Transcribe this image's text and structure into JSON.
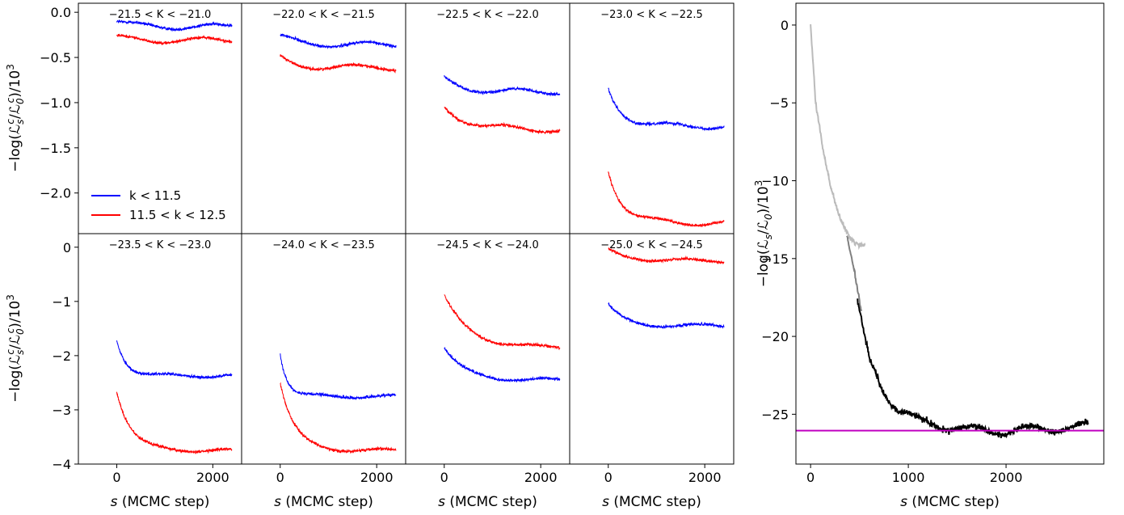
{
  "chart_data": [
    {
      "type": "line",
      "panels": [
        {
          "title": "−21.5 < K < −21.0",
          "series": [
            {
              "name": "k < 11.5",
              "color": "#0000ff",
              "start": -0.1,
              "end": -0.16,
              "tau": 300
            },
            {
              "name": "11.5 < k < 12.5",
              "color": "#ff0000",
              "start": -0.28,
              "end": -0.31,
              "tau": 300
            }
          ]
        },
        {
          "title": "−22.0 < K < −21.5",
          "series": [
            {
              "name": "k < 11.5",
              "color": "#0000ff",
              "start": -0.27,
              "end": -0.36,
              "tau": 400
            },
            {
              "name": "11.5 < k < 12.5",
              "color": "#ff0000",
              "start": -0.5,
              "end": -0.61,
              "tau": 300
            }
          ]
        },
        {
          "title": "−22.5 < K < −22.0",
          "series": [
            {
              "name": "k < 11.5",
              "color": "#0000ff",
              "start": -0.74,
              "end": -0.88,
              "tau": 400
            },
            {
              "name": "11.5 < k < 12.5",
              "color": "#ff0000",
              "start": -1.05,
              "end": -1.3,
              "tau": 500
            }
          ]
        },
        {
          "title": "−23.0 < K < −22.5",
          "series": [
            {
              "name": "k < 11.5",
              "color": "#0000ff",
              "start": -0.85,
              "end": -1.26,
              "tau": 300
            },
            {
              "name": "11.5 < k < 12.5",
              "color": "#ff0000",
              "start": -1.75,
              "end": -2.33,
              "tau": 300
            }
          ]
        },
        {
          "title": "−23.5 < K < −23.0",
          "series": [
            {
              "name": "k < 11.5",
              "color": "#0000ff",
              "start": -1.7,
              "end": -2.37,
              "tau": 200
            },
            {
              "name": "11.5 < k < 12.5",
              "color": "#ff0000",
              "start": -2.65,
              "end": -3.75,
              "tau": 300
            }
          ]
        },
        {
          "title": "−24.0 < K < −23.5",
          "series": [
            {
              "name": "k < 11.5",
              "color": "#0000ff",
              "start": -1.95,
              "end": -2.75,
              "tau": 150
            },
            {
              "name": "11.5 < k < 12.5",
              "color": "#ff0000",
              "start": -2.5,
              "end": -3.75,
              "tau": 300
            }
          ]
        },
        {
          "title": "−24.5 < K < −24.0",
          "series": [
            {
              "name": "k < 11.5",
              "color": "#0000ff",
              "start": -1.85,
              "end": -2.45,
              "tau": 400
            },
            {
              "name": "11.5 < k < 12.5",
              "color": "#ff0000",
              "start": -0.9,
              "end": -1.85,
              "tau": 500
            }
          ]
        },
        {
          "title": "−25.0 < K < −24.5",
          "series": [
            {
              "name": "k < 11.5",
              "color": "#0000ff",
              "start": -1.05,
              "end": -1.45,
              "tau": 300
            },
            {
              "name": "11.5 < k < 12.5",
              "color": "#ff0000",
              "start": -0.05,
              "end": -0.25,
              "tau": 400
            }
          ]
        }
      ],
      "x_range": [
        0,
        2400
      ],
      "xlim": [
        -800,
        2600
      ],
      "xticks": [
        0,
        2000
      ],
      "xtick_labels": [
        "0",
        "2000"
      ],
      "xlabel": "s (MCMC step)",
      "rows": [
        {
          "ylim": [
            -2.45,
            0.1
          ],
          "yticks": [
            0,
            -0.5,
            -1,
            -1.5,
            -2
          ],
          "ytick_labels": [
            "0.0",
            "−0.5",
            "−1.0",
            "−1.5",
            "−2.0"
          ],
          "ylabel": "−log(𝓛ˢᶜ/𝓛₀ᶜ)/10³"
        },
        {
          "ylim": [
            -4,
            0.25
          ],
          "yticks": [
            0,
            -1,
            -2,
            -3,
            -4
          ],
          "ytick_labels": [
            "0",
            "−1",
            "−2",
            "−3",
            "−4"
          ],
          "ylabel": "−log(𝓛ˢᶜ/𝓛₀ᶜ)/10³"
        }
      ],
      "legend": {
        "location": "lower-left of first panel",
        "entries": [
          "k < 11.5",
          "11.5 < k < 12.5"
        ]
      }
    },
    {
      "type": "line",
      "xlim": [
        -150,
        3000
      ],
      "ylim": [
        -28.2,
        1.4
      ],
      "xticks": [
        0,
        1000,
        2000
      ],
      "xtick_labels": [
        "0",
        "1000",
        "2000"
      ],
      "yticks": [
        0,
        -5,
        -10,
        -15,
        -20,
        -25
      ],
      "ytick_labels": [
        "0",
        "−5",
        "−10",
        "−15",
        "−20",
        "−25"
      ],
      "xlabel": "s (MCMC step)",
      "ylabel": "−log(𝓛ₛ/𝓛₀)/10³",
      "series": [
        {
          "color": "#bbbbbb",
          "x_range": [
            0,
            560
          ],
          "anchors": [
            [
              0,
              0
            ],
            [
              50,
              -5
            ],
            [
              120,
              -8
            ],
            [
              200,
              -10.5
            ],
            [
              290,
              -12.2
            ],
            [
              380,
              -13.2
            ],
            [
              450,
              -13.8
            ],
            [
              560,
              -14.1
            ]
          ]
        },
        {
          "color": "#808080",
          "x_range": [
            370,
            520
          ],
          "anchors": [
            [
              370,
              -13.3
            ],
            [
              420,
              -14.8
            ],
            [
              460,
              -16.2
            ],
            [
              520,
              -18.5
            ]
          ]
        },
        {
          "color": "#000000",
          "x_range": [
            480,
            2840
          ],
          "anchors": [
            [
              480,
              -18
            ],
            [
              600,
              -21.5
            ],
            [
              750,
              -23.5
            ],
            [
              900,
              -24.7
            ],
            [
              1100,
              -25.4
            ],
            [
              1300,
              -25.7
            ],
            [
              1600,
              -26
            ],
            [
              2000,
              -26.1
            ],
            [
              2400,
              -25.9
            ],
            [
              2840,
              -25.8
            ]
          ]
        }
      ],
      "hline": {
        "y": -26.05,
        "color": "#c000c0"
      }
    }
  ]
}
